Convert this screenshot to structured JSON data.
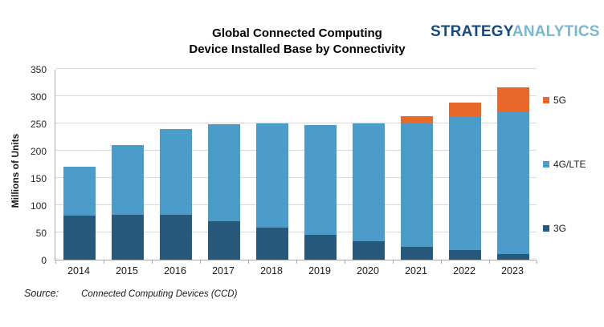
{
  "logo": {
    "part1": "STRATEGY",
    "part2": "ANALYTICS"
  },
  "title_line1": "Global Connected Computing",
  "title_line2": "Device Installed Base by Connectivity",
  "source": {
    "label": "Source:",
    "text": "Connected Computing Devices (CCD)"
  },
  "chart_data": {
    "type": "bar",
    "stacked": true,
    "title": "Global Connected Computing Device Installed Base by Connectivity",
    "xlabel": "",
    "ylabel": "Millions of Units",
    "ylim": [
      0,
      350
    ],
    "yticks": [
      0,
      50,
      100,
      150,
      200,
      250,
      300,
      350
    ],
    "grid": true,
    "legend_position": "right",
    "categories": [
      "2014",
      "2015",
      "2016",
      "2017",
      "2018",
      "2019",
      "2020",
      "2021",
      "2022",
      "2023"
    ],
    "series": [
      {
        "name": "3G",
        "color": "#27597D",
        "values": [
          81,
          83,
          82,
          71,
          59,
          45,
          34,
          24,
          17,
          11
        ]
      },
      {
        "name": "4G/LTE",
        "color": "#4B9CC8",
        "values": [
          89,
          127,
          158,
          178,
          191,
          202,
          216,
          228,
          245,
          259
        ]
      },
      {
        "name": "5G",
        "color": "#E8682C",
        "values": [
          0,
          0,
          0,
          0,
          0,
          0,
          0,
          12,
          26,
          46
        ]
      }
    ],
    "totals": [
      170,
      210,
      240,
      249,
      250,
      247,
      250,
      264,
      288,
      316
    ],
    "legend": [
      {
        "label": "5G",
        "color": "#E8682C"
      },
      {
        "label": "4G/LTE",
        "color": "#4B9CC8"
      },
      {
        "label": "3G",
        "color": "#27597D"
      }
    ]
  }
}
